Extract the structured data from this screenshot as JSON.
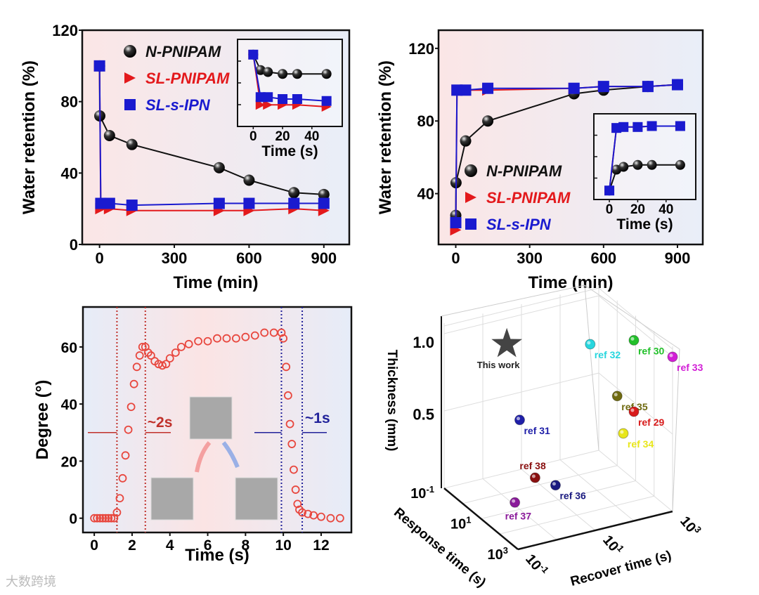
{
  "chart_data": [
    {
      "type": "line",
      "id": "p1",
      "xlabel": "Time (min)",
      "ylabel": "Water retention (%)",
      "xlim": [
        -30,
        940
      ],
      "ylim": [
        0,
        120
      ],
      "xticks": [
        0,
        300,
        600,
        900
      ],
      "yticks": [
        0,
        40,
        80,
        120
      ],
      "series": [
        {
          "name": "N-PNIPAM",
          "color": "#111111",
          "marker": "sphere",
          "x": [
            0,
            1,
            40,
            130,
            480,
            600,
            780,
            900
          ],
          "y": [
            100,
            72,
            61,
            56,
            43,
            36,
            29,
            28
          ]
        },
        {
          "name": "SL-PNIPAM",
          "color": "#e3191c",
          "marker": "triangle",
          "x": [
            0,
            5,
            40,
            130,
            480,
            600,
            780,
            900
          ],
          "y": [
            100,
            20,
            20,
            19,
            19,
            19,
            20,
            19
          ]
        },
        {
          "name": "SL-s-IPN",
          "color": "#1a1acf",
          "marker": "square",
          "x": [
            0,
            5,
            40,
            130,
            480,
            600,
            780,
            900
          ],
          "y": [
            100,
            23,
            23,
            22,
            23,
            23,
            23,
            23
          ]
        }
      ],
      "inset": {
        "xlabel": "Time (s)",
        "xlim": [
          -4,
          54
        ],
        "ylim": [
          65,
          105
        ],
        "xticks": [
          0,
          20,
          40
        ],
        "series": [
          {
            "name": "N-PNIPAM",
            "x": [
              0,
              5,
              10,
              20,
              30,
              50
            ],
            "y": [
              100,
              92,
              91,
              90,
              90,
              90
            ]
          },
          {
            "name": "SL-PNIPAM",
            "x": [
              0,
              5,
              10,
              20,
              30,
              50
            ],
            "y": [
              100,
              74,
              74,
              74,
              74,
              73
            ]
          },
          {
            "name": "SL-s-IPN",
            "x": [
              0,
              5,
              10,
              20,
              30,
              50
            ],
            "y": [
              100,
              78,
              78,
              77,
              77,
              76
            ]
          }
        ]
      }
    },
    {
      "type": "line",
      "id": "p2",
      "xlabel": "Time (min)",
      "ylabel": "Water retention (%)",
      "xlim": [
        -30,
        940
      ],
      "ylim": [
        12,
        130
      ],
      "xticks": [
        0,
        300,
        600,
        900
      ],
      "yticks": [
        40,
        80,
        120
      ],
      "series": [
        {
          "name": "N-PNIPAM",
          "color": "#111111",
          "marker": "sphere",
          "x": [
            0,
            1,
            40,
            130,
            480,
            600,
            780,
            900
          ],
          "y": [
            28,
            46,
            69,
            80,
            95,
            97,
            99,
            100
          ]
        },
        {
          "name": "SL-PNIPAM",
          "color": "#e3191c",
          "marker": "triangle",
          "x": [
            0,
            5,
            40,
            130,
            480,
            600,
            780,
            900
          ],
          "y": [
            20,
            97,
            97,
            97,
            98,
            99,
            99,
            100
          ]
        },
        {
          "name": "SL-s-IPN",
          "color": "#1a1acf",
          "marker": "square",
          "x": [
            0,
            5,
            40,
            130,
            480,
            600,
            780,
            900
          ],
          "y": [
            24,
            97,
            97,
            98,
            98,
            99,
            99,
            100
          ]
        }
      ],
      "inset": {
        "xlabel": "Time (s)",
        "xlim": [
          -4,
          54
        ],
        "ylim": [
          25,
          105
        ],
        "xticks": [
          0,
          20,
          40
        ],
        "series": [
          {
            "name": "N-PNIPAM",
            "x": [
              0,
              5,
              10,
              20,
              30,
              50
            ],
            "y": [
              30,
              52,
              55,
              57,
              57,
              57
            ]
          },
          {
            "name": "SL-PNIPAM",
            "x": [
              0,
              5,
              10,
              20,
              30,
              50
            ],
            "y": [
              30,
              96,
              97,
              97,
              98,
              98
            ]
          },
          {
            "name": "SL-s-IPN",
            "x": [
              0,
              5,
              10,
              20,
              30,
              50
            ],
            "y": [
              30,
              96,
              97,
              97,
              98,
              98
            ]
          }
        ]
      }
    },
    {
      "type": "scatter",
      "id": "p3",
      "xlabel": "Time (s)",
      "ylabel": "Degree (°)",
      "xlim": [
        -0.6,
        13.6
      ],
      "ylim": [
        -5,
        74
      ],
      "xticks": [
        0,
        2,
        4,
        6,
        8,
        10,
        12
      ],
      "yticks": [
        0,
        20,
        40,
        60
      ],
      "color": "#e8473e",
      "x": [
        0,
        0.15,
        0.3,
        0.45,
        0.6,
        0.75,
        0.9,
        1.05,
        1.2,
        1.35,
        1.5,
        1.65,
        1.8,
        1.95,
        2.1,
        2.25,
        2.4,
        2.55,
        2.7,
        2.85,
        3.0,
        3.2,
        3.4,
        3.6,
        3.8,
        4.0,
        4.3,
        4.6,
        5.0,
        5.5,
        6.0,
        6.5,
        7.0,
        7.5,
        8.0,
        8.5,
        9.0,
        9.5,
        9.9,
        10.0,
        10.15,
        10.25,
        10.35,
        10.45,
        10.55,
        10.65,
        10.75,
        10.85,
        11.0,
        11.3,
        11.6,
        12.0,
        12.5,
        13.0
      ],
      "y": [
        0,
        0,
        0,
        0,
        0,
        0,
        0,
        0,
        2,
        7,
        14,
        22,
        31,
        39,
        47,
        53,
        57,
        60,
        60,
        58,
        57,
        55,
        54,
        53.5,
        54,
        56,
        58,
        60,
        61,
        62,
        62,
        63,
        63,
        63,
        63.5,
        64,
        65,
        65,
        65,
        63,
        53,
        43,
        33,
        26,
        17,
        10,
        5,
        3,
        2,
        1.5,
        1,
        0.5,
        0,
        0
      ],
      "markers": {
        "red_lines": [
          1.2,
          2.7
        ],
        "blue_lines": [
          9.9,
          11.0
        ],
        "red_label": "~2s",
        "blue_label": "~1s"
      }
    },
    {
      "type": "scatter3d",
      "id": "p4",
      "xlabel": "Recover time (s)",
      "ylabel": "Response time (s)",
      "zlabel": "Thickness (mm)",
      "zticks": [
        "0.5",
        "1.0"
      ],
      "xticks": [
        "10-1",
        "101",
        "103"
      ],
      "yticks": [
        "10-1",
        "101",
        "103"
      ],
      "points": [
        {
          "label": "This work",
          "color": "#444444",
          "shape": "star",
          "recover": 1,
          "response": 2,
          "thickness": 1.0
        },
        {
          "label": "ref 32",
          "color": "#27d6de",
          "recover": 600,
          "response": 0.1,
          "thickness": 0.7
        },
        {
          "label": "ref 30",
          "color": "#22c02a",
          "recover": 1000,
          "response": 8,
          "thickness": 0.9
        },
        {
          "label": "ref 33",
          "color": "#d21ed6",
          "recover": 1000,
          "response": 1000,
          "thickness": 1.0
        },
        {
          "label": "ref 35",
          "color": "#6f6a10",
          "recover": 1000,
          "response": 1,
          "thickness": 0.45
        },
        {
          "label": "ref 29",
          "color": "#d81b1b",
          "recover": 3000,
          "response": 0.8,
          "thickness": 0.31
        },
        {
          "label": "ref 34",
          "color": "#e8e61a",
          "recover": 2000,
          "response": 0.5,
          "thickness": 0.16
        },
        {
          "label": "ref 31",
          "color": "#1f1fa8",
          "recover": 3,
          "response": 1,
          "thickness": 0.45
        },
        {
          "label": "ref 38",
          "color": "#8a1010",
          "recover": 2.5,
          "response": 10,
          "thickness": 0.18
        },
        {
          "label": "ref 36",
          "color": "#1a1a80",
          "recover": 5,
          "response": 30,
          "thickness": 0.16
        },
        {
          "label": "ref 37",
          "color": "#8a1a9a",
          "recover": 0.25,
          "response": 100,
          "thickness": 0.18
        }
      ]
    }
  ],
  "watermark": "大数跨境"
}
